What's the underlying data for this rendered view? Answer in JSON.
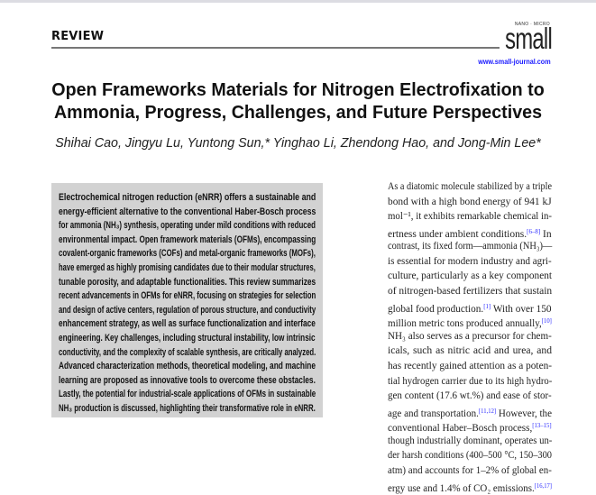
{
  "header": {
    "section": "REVIEW",
    "journal_logo": {
      "tag": "NANO · MICRO",
      "name": "small"
    },
    "url": "www.small-journal.com"
  },
  "title_lines": [
    "Open Frameworks Materials for Nitrogen Electrofixation to",
    "Ammonia, Progress, Challenges, and Future Perspectives"
  ],
  "authors": "Shihai Cao, Jingyu Lu, Yuntong Sun,* Yinghao Li, Zhendong Hao, and Jong-Min Lee*",
  "abstract_lines": [
    "Electrochemical nitrogen reduction (eNRR) offers a sustainable and",
    "energy-efficient alternative to the conventional Haber-Bosch process",
    "for ammonia (NH₃) synthesis, operating under mild conditions with reduced",
    "environmental impact. Open framework materials (OFMs), encompassing",
    "covalent-organic frameworks (COFs) and metal-organic frameworks (MOFs),",
    "have emerged as highly promising candidates due to their modular structures,",
    "tunable porosity, and adaptable functionalities. This review summarizes",
    "recent advancements in OFMs for eNRR, focusing on strategies for selection",
    "and design of active centers, regulation of porous structure, and conductivity",
    "enhancement strategy, as well as surface functionalization and interface",
    "engineering. Key challenges, including structural instability, low intrinsic",
    "conductivity, and the complexity of scalable synthesis, are critically analyzed.",
    "Advanced characterization methods, theoretical modeling, and machine",
    "learning are proposed as innovative tools to overcome these obstacles.",
    "Lastly, the potential for industrial-scale applications of OFMs in sustainable",
    "NH₃ production is discussed, highlighting their transformative role in eNRR."
  ],
  "body_lines": [
    [
      "As a diatomic molecule stabilized by a triple"
    ],
    [
      "bond with a high bond energy of 941 kJ"
    ],
    [
      "mol⁻¹, it exhibits remarkable chemical in-"
    ],
    [
      "ertness under ambient conditions.",
      {
        "cite": "[6–8]"
      },
      " In"
    ],
    [
      "contrast, its fixed form—ammonia (NH₃)—"
    ],
    [
      "is essential for modern industry and agri-"
    ],
    [
      "culture, particularly as a key component"
    ],
    [
      "of nitrogen-based fertilizers that sustain"
    ],
    [
      "global food production.",
      {
        "cite": "[1]"
      },
      " With over 150"
    ],
    [
      "million metric tons produced annually,",
      {
        "cite": "[10]"
      }
    ],
    [
      "NH₃ also serves as a precursor for chem-"
    ],
    [
      "icals, such as nitric acid and urea, and"
    ],
    [
      "has recently gained attention as a poten-"
    ],
    [
      "tial hydrogen carrier due to its high hydro-"
    ],
    [
      "gen content (17.6 wt.%) and ease of stor-"
    ],
    [
      "age and transportation.",
      {
        "cite": "[11,12]"
      },
      " However, the"
    ],
    [
      "conventional Haber–Bosch process,",
      {
        "cite": "[13–15]"
      }
    ],
    [
      "though industrially dominant, operates un-"
    ],
    [
      "der harsh conditions (400–500 °C, 150–300"
    ],
    [
      "atm) and accounts for 1–2% of global en-"
    ],
    [
      "ergy use and 1.4% of CO₂ emissions.",
      {
        "cite": "[16,17]"
      }
    ]
  ],
  "colors": {
    "link": "#2a2aff",
    "abstract_bg": "#d2d2d2",
    "url": "#1a1aff"
  }
}
